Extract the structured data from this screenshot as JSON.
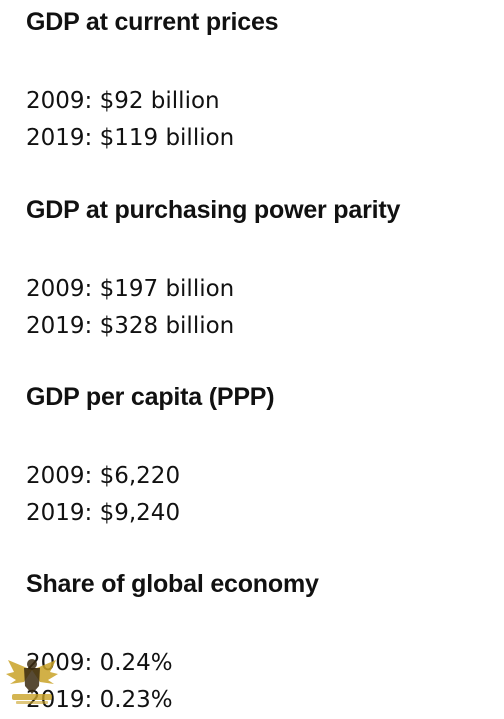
{
  "sections": [
    {
      "heading": "GDP at current prices",
      "lines": [
        "2009: $92 billion",
        "2019: $119 billion"
      ]
    },
    {
      "heading": "GDP at purchasing power parity",
      "lines": [
        "2009: $197 billion",
        "2019: $328 billion"
      ]
    },
    {
      "heading": "GDP per capita (PPP)",
      "lines": [
        "2009: $6,220",
        "2019: $9,240"
      ]
    },
    {
      "heading": "Share of global economy",
      "lines": [
        "2009: 0.24%",
        "2019: 0.23%"
      ]
    }
  ],
  "watermark": {
    "icon": "eagle-crest-icon",
    "colors": {
      "gold": "#c9a227",
      "dark": "#3a2a10",
      "white": "#ffffff"
    }
  }
}
